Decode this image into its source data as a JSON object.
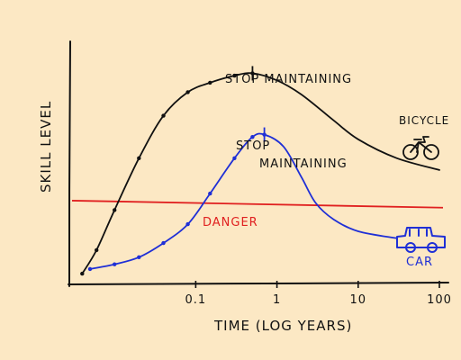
{
  "colors": {
    "background": "#fce8c4",
    "ink": "#111111",
    "bicycle": "#111111",
    "car": "#1f2fd6",
    "danger": "#e02020"
  },
  "chart_data": {
    "type": "line",
    "xscale": "log",
    "xlim": [
      0.003,
      100
    ],
    "ylim": [
      0,
      1
    ],
    "xlabel": "TIME (LOG YEARS)",
    "ylabel": "SKILL LEVEL",
    "xticks": [
      {
        "value": 0.1,
        "label": "0.1"
      },
      {
        "value": 1,
        "label": "1"
      },
      {
        "value": 10,
        "label": "10"
      },
      {
        "value": 100,
        "label": "100"
      }
    ],
    "grid": false,
    "series": [
      {
        "name": "BICYCLE",
        "color": "#111111",
        "x": [
          0.004,
          0.006,
          0.01,
          0.02,
          0.04,
          0.08,
          0.15,
          0.3,
          0.5,
          1,
          2,
          5,
          10,
          30,
          100
        ],
        "y": [
          0.03,
          0.13,
          0.3,
          0.52,
          0.7,
          0.8,
          0.84,
          0.87,
          0.88,
          0.85,
          0.79,
          0.68,
          0.6,
          0.52,
          0.47
        ],
        "marked_until": 0.5,
        "stop_maintaining_at": 0.5
      },
      {
        "name": "CAR",
        "color": "#1f2fd6",
        "x": [
          0.005,
          0.01,
          0.02,
          0.04,
          0.08,
          0.15,
          0.3,
          0.5,
          0.7,
          1.2,
          2,
          3,
          5,
          10,
          30
        ],
        "y": [
          0.05,
          0.07,
          0.1,
          0.16,
          0.24,
          0.37,
          0.52,
          0.61,
          0.62,
          0.57,
          0.44,
          0.33,
          0.26,
          0.21,
          0.18
        ],
        "marked_until": 0.7,
        "stop_maintaining_at": 0.7
      }
    ],
    "threshold": {
      "label": "DANGER",
      "y_start": 0.34,
      "y_end": 0.31,
      "color": "#e02020"
    },
    "annotations": [
      {
        "text": "STOP MAINTAINING",
        "series": "BICYCLE"
      },
      {
        "text": "STOP",
        "series": "CAR"
      },
      {
        "text": "MAINTAINING",
        "series": "CAR"
      },
      {
        "text": "BICYCLE",
        "series": "BICYCLE"
      },
      {
        "text": "CAR",
        "series": "CAR"
      }
    ]
  }
}
